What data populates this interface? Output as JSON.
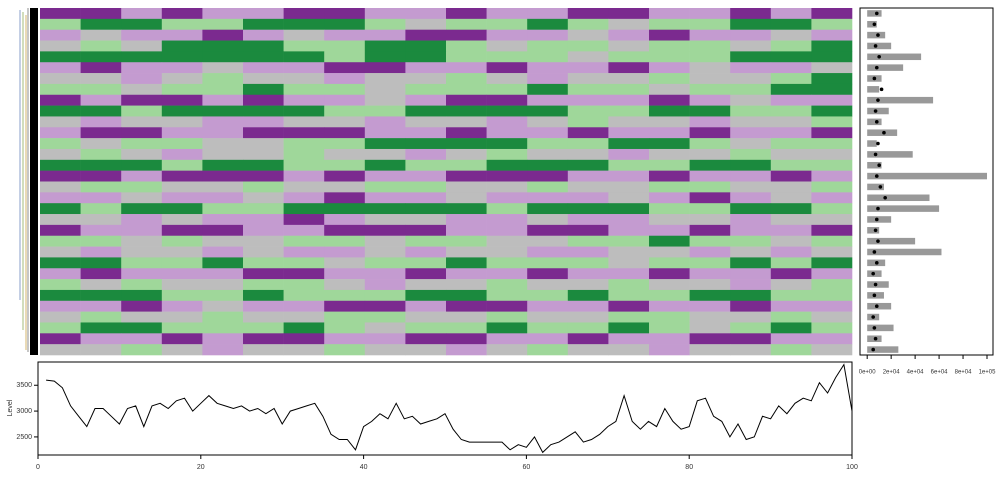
{
  "chart_data": [
    {
      "type": "heatmap",
      "colors": {
        "-2": "#7b2a8f",
        "-1": "#c49bd0",
        "0": "#bdbdbd",
        "1": "#9fd79a",
        "2": "#1b8a3e"
      },
      "values": [
        [
          -2,
          -2,
          -1,
          -2,
          -1,
          -1,
          -2,
          -2,
          -1,
          -1,
          -2,
          -1,
          -1,
          -2,
          -2,
          -1,
          -1,
          -2,
          -1,
          -2
        ],
        [
          1,
          2,
          2,
          1,
          1,
          2,
          2,
          2,
          1,
          0,
          1,
          1,
          2,
          1,
          0,
          1,
          1,
          2,
          2,
          1
        ],
        [
          -1,
          0,
          -1,
          -1,
          -2,
          -1,
          0,
          -1,
          -1,
          -2,
          -2,
          -1,
          -1,
          0,
          -1,
          -2,
          -1,
          -1,
          0,
          -1
        ],
        [
          0,
          1,
          0,
          2,
          2,
          2,
          1,
          1,
          2,
          2,
          1,
          0,
          1,
          1,
          0,
          1,
          1,
          0,
          1,
          2
        ],
        [
          2,
          2,
          2,
          2,
          2,
          2,
          2,
          1,
          2,
          2,
          1,
          1,
          1,
          0,
          1,
          1,
          1,
          2,
          2,
          2
        ],
        [
          -1,
          -2,
          -1,
          -1,
          0,
          -1,
          -1,
          -2,
          -2,
          -1,
          -1,
          -2,
          -1,
          -1,
          -2,
          -1,
          0,
          -1,
          -1,
          0
        ],
        [
          0,
          0,
          -1,
          0,
          1,
          0,
          0,
          -1,
          0,
          0,
          1,
          0,
          -1,
          0,
          0,
          1,
          0,
          0,
          1,
          2
        ],
        [
          1,
          1,
          0,
          1,
          1,
          2,
          1,
          1,
          0,
          1,
          1,
          1,
          2,
          1,
          1,
          0,
          1,
          1,
          2,
          2
        ],
        [
          -2,
          -1,
          -2,
          -2,
          -1,
          -2,
          -1,
          -1,
          0,
          -1,
          -2,
          -2,
          -1,
          -1,
          -1,
          -2,
          -1,
          0,
          -1,
          -1
        ],
        [
          2,
          2,
          1,
          2,
          2,
          2,
          2,
          1,
          1,
          2,
          2,
          2,
          2,
          1,
          1,
          2,
          2,
          1,
          1,
          2
        ],
        [
          0,
          -1,
          0,
          0,
          -1,
          -1,
          0,
          0,
          -1,
          0,
          0,
          -1,
          0,
          1,
          0,
          0,
          -1,
          0,
          0,
          1
        ],
        [
          -1,
          -2,
          -2,
          -1,
          -1,
          -2,
          -2,
          -2,
          -1,
          -1,
          -2,
          -1,
          -1,
          -2,
          -1,
          -1,
          -2,
          -1,
          -1,
          -2
        ],
        [
          1,
          0,
          1,
          1,
          0,
          0,
          1,
          1,
          2,
          2,
          2,
          2,
          1,
          1,
          2,
          2,
          1,
          0,
          1,
          1
        ],
        [
          0,
          1,
          0,
          -1,
          0,
          0,
          1,
          0,
          0,
          -1,
          0,
          1,
          0,
          0,
          -1,
          0,
          0,
          1,
          0,
          0
        ],
        [
          2,
          2,
          2,
          1,
          2,
          2,
          1,
          1,
          2,
          1,
          1,
          2,
          2,
          2,
          1,
          1,
          2,
          2,
          1,
          1
        ],
        [
          -2,
          -2,
          -1,
          -2,
          -2,
          -2,
          -1,
          -2,
          -1,
          -1,
          -2,
          -2,
          -2,
          -1,
          -1,
          -2,
          -1,
          -1,
          -2,
          -1
        ],
        [
          0,
          1,
          1,
          0,
          0,
          1,
          0,
          0,
          1,
          1,
          0,
          0,
          1,
          0,
          0,
          1,
          1,
          0,
          0,
          1
        ],
        [
          -1,
          -1,
          0,
          -1,
          -1,
          0,
          -1,
          -2,
          -1,
          -1,
          0,
          -1,
          -1,
          -1,
          0,
          -1,
          -2,
          -1,
          0,
          -1
        ],
        [
          2,
          1,
          2,
          2,
          1,
          1,
          2,
          2,
          2,
          2,
          2,
          1,
          2,
          2,
          2,
          1,
          1,
          2,
          2,
          1
        ],
        [
          0,
          0,
          -1,
          0,
          -1,
          -1,
          -2,
          -1,
          0,
          0,
          -1,
          -1,
          0,
          -1,
          -1,
          0,
          0,
          -1,
          0,
          0
        ],
        [
          -2,
          -1,
          -1,
          -2,
          -2,
          -1,
          -1,
          -2,
          -2,
          -2,
          -1,
          -1,
          -2,
          -2,
          -1,
          -1,
          -2,
          -1,
          -1,
          -2
        ],
        [
          1,
          1,
          0,
          1,
          0,
          0,
          1,
          1,
          0,
          1,
          1,
          0,
          0,
          1,
          1,
          2,
          1,
          1,
          0,
          1
        ],
        [
          0,
          -1,
          0,
          0,
          -1,
          0,
          -1,
          -1,
          0,
          -1,
          0,
          0,
          -1,
          -1,
          0,
          0,
          -1,
          0,
          -1,
          0
        ],
        [
          2,
          2,
          1,
          1,
          2,
          1,
          1,
          0,
          1,
          1,
          2,
          1,
          1,
          1,
          0,
          1,
          1,
          2,
          1,
          2
        ],
        [
          -1,
          -2,
          -1,
          -1,
          -1,
          -2,
          -2,
          -1,
          -1,
          -2,
          -1,
          -1,
          -2,
          -1,
          -1,
          -2,
          -1,
          -1,
          -2,
          -1
        ],
        [
          1,
          0,
          1,
          0,
          0,
          1,
          1,
          0,
          -1,
          0,
          0,
          1,
          0,
          0,
          1,
          0,
          0,
          -1,
          0,
          1
        ],
        [
          2,
          2,
          2,
          1,
          1,
          2,
          1,
          1,
          1,
          2,
          2,
          1,
          1,
          2,
          1,
          1,
          2,
          2,
          1,
          1
        ],
        [
          -1,
          -1,
          -2,
          -1,
          0,
          -1,
          -1,
          -2,
          -2,
          -1,
          -2,
          -2,
          -1,
          -1,
          -2,
          -1,
          -1,
          -2,
          -1,
          -1
        ],
        [
          0,
          1,
          0,
          0,
          1,
          0,
          0,
          1,
          1,
          0,
          0,
          1,
          0,
          0,
          1,
          1,
          0,
          0,
          1,
          0
        ],
        [
          1,
          2,
          2,
          1,
          1,
          1,
          2,
          1,
          0,
          1,
          1,
          2,
          1,
          1,
          2,
          1,
          0,
          1,
          2,
          1
        ],
        [
          -2,
          -1,
          -1,
          -2,
          -1,
          -2,
          -2,
          -1,
          -1,
          -2,
          -2,
          -1,
          -1,
          -2,
          -1,
          -1,
          -2,
          -2,
          -1,
          -1
        ],
        [
          0,
          0,
          1,
          0,
          -1,
          0,
          0,
          1,
          0,
          0,
          -1,
          0,
          1,
          0,
          0,
          -1,
          0,
          0,
          1,
          0
        ]
      ]
    },
    {
      "type": "bar",
      "orientation": "horizontal",
      "series": [
        {
          "color": "#999999",
          "values": [
            12000,
            8000,
            15000,
            20000,
            45000,
            30000,
            12000,
            10000,
            55000,
            18000,
            12000,
            25000,
            8000,
            38000,
            12000,
            100000,
            14000,
            52000,
            60000,
            20000,
            10000,
            40000,
            62000,
            15000,
            12000,
            18000,
            14000,
            20000,
            10000,
            22000,
            12000,
            26000
          ]
        },
        {
          "color": "#000000",
          "values": [
            8000,
            6000,
            9000,
            7000,
            10000,
            8000,
            6000,
            12000,
            9000,
            7000,
            8000,
            14000,
            9000,
            7000,
            10000,
            8000,
            11000,
            15000,
            9000,
            8000,
            7000,
            9000,
            6000,
            8000,
            5000,
            7000,
            6000,
            8000,
            5000,
            6000,
            7000,
            5000
          ]
        }
      ],
      "xlim": [
        -6000,
        105000
      ],
      "xticks": [
        {
          "value": 0,
          "label": "0e+00"
        },
        {
          "value": 20000,
          "label": "2e+04"
        },
        {
          "value": 40000,
          "label": "4e+04"
        },
        {
          "value": 60000,
          "label": "6e+04"
        },
        {
          "value": 80000,
          "label": "8e+04"
        },
        {
          "value": 100000,
          "label": "1e+05"
        }
      ]
    },
    {
      "type": "line",
      "y_label": "Level",
      "color": "#000000",
      "x": [
        1,
        2,
        3,
        4,
        5,
        6,
        7,
        8,
        9,
        10,
        11,
        12,
        13,
        14,
        15,
        16,
        17,
        18,
        19,
        20,
        21,
        22,
        23,
        24,
        25,
        26,
        27,
        28,
        29,
        30,
        31,
        32,
        33,
        34,
        35,
        36,
        37,
        38,
        39,
        40,
        41,
        42,
        43,
        44,
        45,
        46,
        47,
        48,
        49,
        50,
        51,
        52,
        53,
        54,
        55,
        56,
        57,
        58,
        59,
        60,
        61,
        62,
        63,
        64,
        65,
        66,
        67,
        68,
        69,
        70,
        71,
        72,
        73,
        74,
        75,
        76,
        77,
        78,
        79,
        80,
        81,
        82,
        83,
        84,
        85,
        86,
        87,
        88,
        89,
        90,
        91,
        92,
        93,
        94,
        95,
        96,
        97,
        98,
        99,
        100
      ],
      "values": [
        3600,
        3580,
        3450,
        3100,
        2900,
        2700,
        3050,
        3050,
        2900,
        2750,
        3050,
        3100,
        2700,
        3100,
        3150,
        3050,
        3200,
        3250,
        3000,
        3150,
        3300,
        3150,
        3100,
        3050,
        3100,
        3000,
        3050,
        2950,
        3050,
        2750,
        3000,
        3050,
        3100,
        3150,
        2900,
        2550,
        2450,
        2450,
        2250,
        2700,
        2800,
        2950,
        2850,
        3150,
        2850,
        2900,
        2750,
        2800,
        2850,
        2950,
        2650,
        2450,
        2400,
        2400,
        2400,
        2400,
        2400,
        2250,
        2350,
        2300,
        2500,
        2200,
        2350,
        2400,
        2500,
        2600,
        2400,
        2450,
        2550,
        2700,
        2800,
        3300,
        2800,
        2650,
        2800,
        2700,
        3050,
        2800,
        2650,
        2700,
        3200,
        3250,
        2900,
        2800,
        2500,
        2750,
        2450,
        2500,
        2900,
        2850,
        3100,
        2950,
        3150,
        3250,
        3200,
        3550,
        3350,
        3650,
        3900,
        3000
      ],
      "xlim": [
        0,
        100
      ],
      "xticks": [
        0,
        20,
        40,
        60,
        80,
        100
      ],
      "ylim": [
        2150,
        3950
      ],
      "yticks": [
        2500,
        3000,
        3500
      ]
    }
  ]
}
